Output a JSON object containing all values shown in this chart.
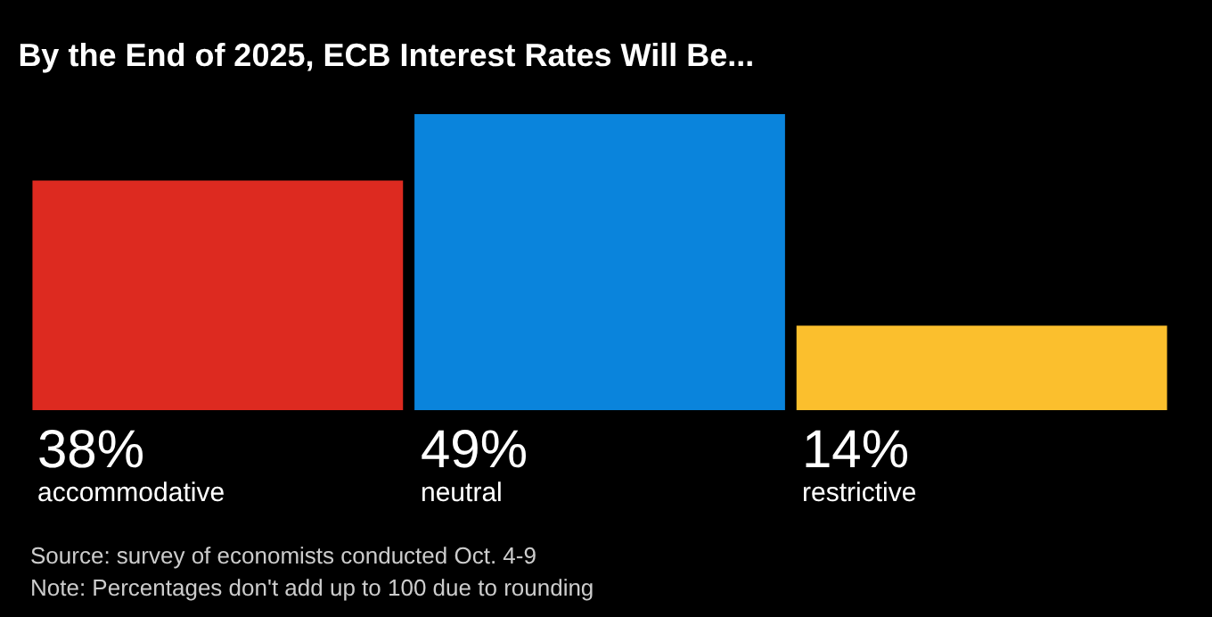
{
  "chart_data": {
    "type": "bar",
    "title": "By the End of 2025, ECB Interest Rates Will Be...",
    "categories": [
      "accommodative",
      "neutral",
      "restrictive"
    ],
    "values": [
      38,
      49,
      14
    ],
    "colors": [
      "#dd2a20",
      "#0a84dc",
      "#fbbf2d"
    ],
    "value_labels": [
      "38%",
      "49%",
      "14%"
    ],
    "ylim": [
      0,
      49
    ],
    "annotations": [
      "Source: survey of economists conducted Oct. 4-9",
      "Note: Percentages don't add up to 100 due to rounding"
    ]
  }
}
